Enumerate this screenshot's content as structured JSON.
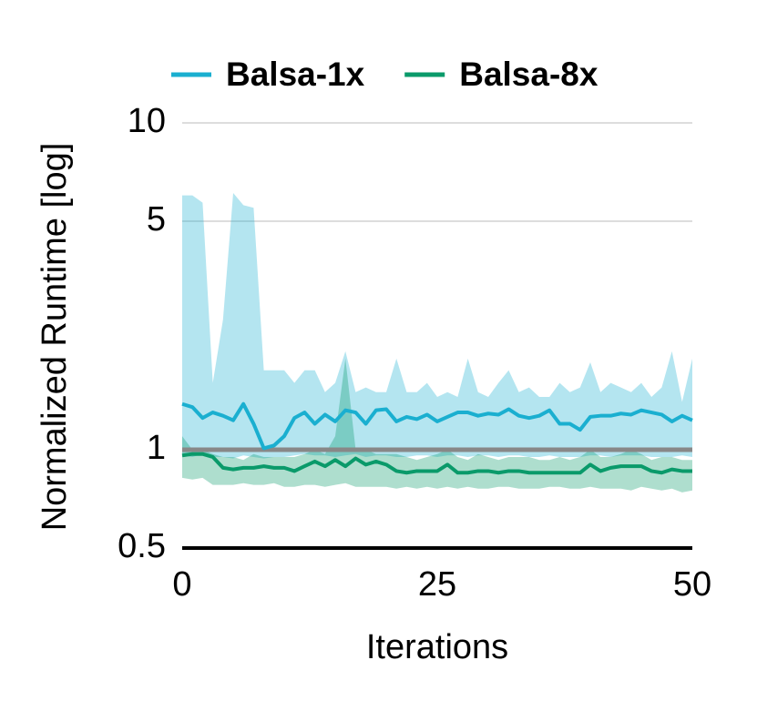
{
  "chart_data": {
    "type": "line",
    "x_label": "Iterations",
    "y_label": "Normalized Runtime [log]",
    "log_y": true,
    "grid": true,
    "legend": "top",
    "xlim": [
      0,
      50
    ],
    "xticks": [
      0,
      25,
      50
    ],
    "ylim": [
      0.5,
      10
    ],
    "yticks": [
      0.5,
      1,
      5,
      10
    ],
    "reference_line": {
      "value": 1,
      "color": "#888888"
    },
    "x": [
      0,
      1,
      2,
      3,
      4,
      5,
      6,
      7,
      8,
      9,
      10,
      11,
      12,
      13,
      14,
      15,
      16,
      17,
      18,
      19,
      20,
      21,
      22,
      23,
      24,
      25,
      26,
      27,
      28,
      29,
      30,
      31,
      32,
      33,
      34,
      35,
      36,
      37,
      38,
      39,
      40,
      41,
      42,
      43,
      44,
      45,
      46,
      47,
      48,
      49,
      50
    ],
    "series": [
      {
        "name": "Balsa-1x",
        "color": "#1aafd0",
        "values": [
          1.38,
          1.35,
          1.25,
          1.3,
          1.27,
          1.23,
          1.38,
          1.2,
          1.01,
          1.03,
          1.1,
          1.25,
          1.3,
          1.2,
          1.28,
          1.22,
          1.32,
          1.3,
          1.2,
          1.32,
          1.33,
          1.22,
          1.26,
          1.24,
          1.28,
          1.22,
          1.26,
          1.3,
          1.3,
          1.27,
          1.29,
          1.28,
          1.33,
          1.27,
          1.25,
          1.27,
          1.32,
          1.2,
          1.2,
          1.15,
          1.26,
          1.27,
          1.27,
          1.29,
          1.28,
          1.32,
          1.3,
          1.28,
          1.22,
          1.27,
          1.23
        ],
        "upper": [
          6,
          6,
          5.7,
          1.6,
          2.5,
          6.1,
          5.6,
          5.5,
          1.75,
          1.75,
          1.75,
          1.6,
          1.75,
          1.75,
          1.5,
          1.6,
          2.0,
          1.5,
          1.55,
          1.5,
          1.5,
          1.9,
          1.5,
          1.5,
          1.6,
          1.45,
          1.5,
          1.45,
          1.9,
          1.5,
          1.45,
          1.6,
          1.75,
          1.5,
          1.55,
          1.45,
          1.45,
          1.6,
          1.5,
          1.55,
          1.85,
          1.5,
          1.6,
          1.55,
          1.5,
          1.6,
          1.45,
          1.55,
          2.0,
          1.4,
          1.9
        ],
        "lower": [
          0.96,
          0.95,
          0.97,
          0.95,
          0.95,
          0.94,
          0.96,
          0.95,
          0.94,
          0.95,
          0.95,
          0.96,
          0.97,
          0.96,
          0.96,
          0.95,
          0.96,
          0.97,
          0.95,
          0.96,
          0.96,
          0.95,
          0.95,
          0.96,
          0.96,
          0.95,
          0.96,
          0.96,
          0.95,
          0.96,
          0.96,
          0.95,
          0.96,
          0.96,
          0.95,
          0.95,
          0.96,
          0.95,
          0.95,
          0.95,
          0.96,
          0.96,
          0.95,
          0.96,
          0.96,
          0.96,
          0.95,
          0.95,
          0.95,
          0.96,
          0.95
        ]
      },
      {
        "name": "Balsa-8x",
        "color": "#0a9a6a",
        "values": [
          0.96,
          0.97,
          0.97,
          0.95,
          0.88,
          0.87,
          0.88,
          0.88,
          0.89,
          0.88,
          0.88,
          0.86,
          0.89,
          0.92,
          0.89,
          0.93,
          0.89,
          0.94,
          0.9,
          0.92,
          0.9,
          0.86,
          0.85,
          0.86,
          0.86,
          0.86,
          0.9,
          0.85,
          0.85,
          0.86,
          0.86,
          0.85,
          0.86,
          0.86,
          0.85,
          0.85,
          0.85,
          0.85,
          0.85,
          0.85,
          0.9,
          0.86,
          0.88,
          0.89,
          0.89,
          0.89,
          0.86,
          0.85,
          0.87,
          0.86,
          0.86
        ],
        "upper": [
          1.1,
          1.0,
          1.0,
          0.97,
          0.95,
          0.95,
          0.93,
          0.97,
          0.95,
          0.95,
          0.95,
          0.95,
          0.97,
          1.0,
          0.97,
          1.1,
          1.9,
          1.0,
          1.0,
          0.97,
          0.97,
          0.97,
          0.95,
          0.93,
          0.95,
          0.97,
          1.0,
          0.95,
          0.93,
          0.97,
          0.95,
          0.93,
          0.95,
          0.95,
          0.95,
          0.93,
          0.93,
          0.95,
          0.93,
          0.95,
          1.0,
          0.95,
          0.95,
          0.97,
          1.0,
          0.97,
          0.93,
          0.95,
          0.95,
          0.93,
          0.93
        ],
        "lower": [
          0.82,
          0.81,
          0.82,
          0.78,
          0.78,
          0.78,
          0.79,
          0.78,
          0.78,
          0.79,
          0.77,
          0.77,
          0.78,
          0.78,
          0.77,
          0.78,
          0.79,
          0.77,
          0.77,
          0.77,
          0.77,
          0.76,
          0.77,
          0.76,
          0.77,
          0.76,
          0.77,
          0.76,
          0.77,
          0.76,
          0.76,
          0.77,
          0.77,
          0.76,
          0.76,
          0.76,
          0.77,
          0.77,
          0.76,
          0.76,
          0.77,
          0.76,
          0.76,
          0.76,
          0.75,
          0.77,
          0.76,
          0.75,
          0.76,
          0.74,
          0.75
        ]
      }
    ]
  }
}
